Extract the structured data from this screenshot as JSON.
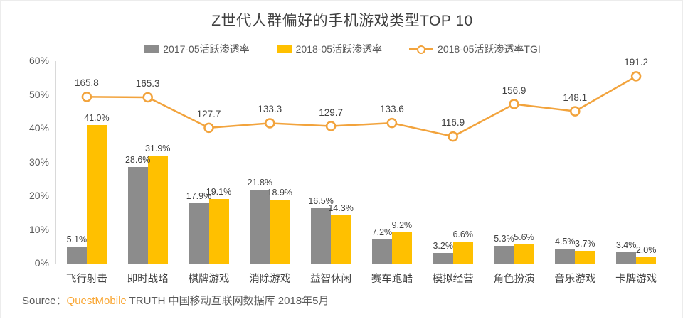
{
  "title": "Z世代人群偏好的手机游戏类型TOP 10",
  "colors": {
    "bar_2017": "#8C8C8C",
    "bar_2018": "#FFC000",
    "tgi_line": "#F2A33C",
    "brand_orange": "#F9A633"
  },
  "legend": [
    {
      "label": "2017-05活跃渗透率",
      "type": "bar",
      "color": "#8C8C8C"
    },
    {
      "label": "2018-05活跃渗透率",
      "type": "bar",
      "color": "#FFC000"
    },
    {
      "label": "2018-05活跃渗透率TGI",
      "type": "line",
      "color": "#F2A33C"
    }
  ],
  "chart_data": {
    "type": "bar+line",
    "title": "Z世代人群偏好的手机游戏类型TOP 10",
    "categories": [
      "飞行射击",
      "即时战略",
      "棋牌游戏",
      "消除游戏",
      "益智休闲",
      "赛车跑酷",
      "模拟经营",
      "角色扮演",
      "音乐游戏",
      "卡牌游戏"
    ],
    "series": [
      {
        "name": "2017-05活跃渗透率",
        "type": "bar",
        "unit": "%",
        "color": "#8C8C8C",
        "values": [
          5.1,
          28.6,
          17.9,
          21.8,
          16.5,
          7.2,
          3.2,
          5.3,
          4.5,
          3.4
        ]
      },
      {
        "name": "2018-05活跃渗透率",
        "type": "bar",
        "unit": "%",
        "color": "#FFC000",
        "values": [
          41.0,
          31.9,
          19.1,
          18.9,
          14.3,
          9.2,
          6.6,
          5.6,
          3.7,
          2.0
        ]
      },
      {
        "name": "2018-05活跃渗透率TGI",
        "type": "line",
        "unit": "",
        "color": "#F2A33C",
        "values": [
          165.8,
          165.3,
          127.7,
          133.3,
          129.7,
          133.6,
          116.9,
          156.9,
          148.1,
          191.2
        ]
      }
    ],
    "y_axis": {
      "min": 0,
      "max": 60,
      "ticks": [
        "0%",
        "10%",
        "20%",
        "30%",
        "40%",
        "50%",
        "60%"
      ]
    },
    "grid": false,
    "legend_position": "top",
    "data_labels": true
  },
  "source": {
    "prefix": "Source：",
    "brand": "QuestMobile",
    "suffix": " TRUTH 中国移动互联网数据库 2018年5月"
  }
}
